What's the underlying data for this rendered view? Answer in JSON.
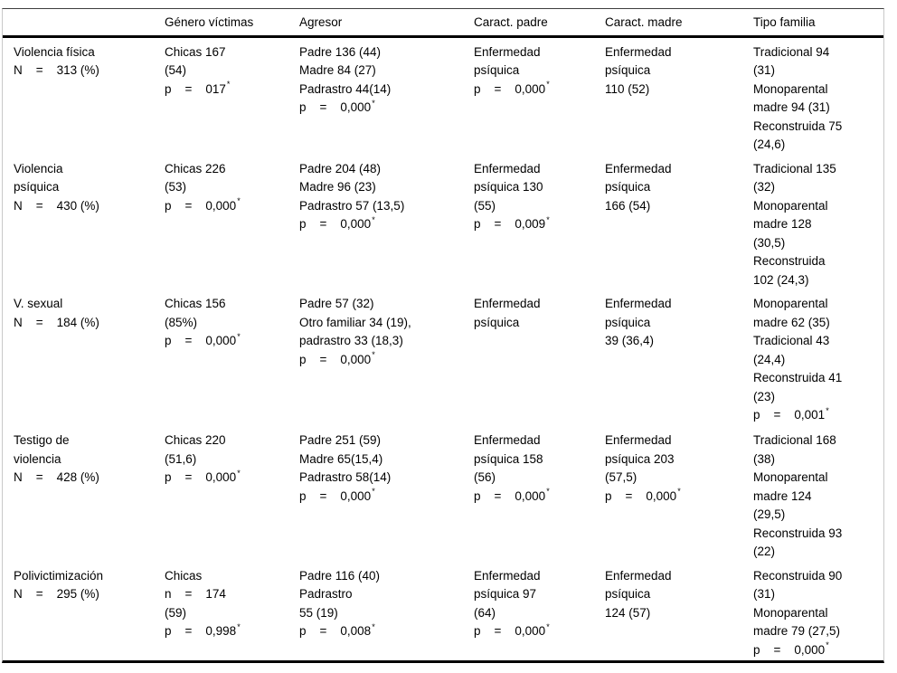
{
  "colors": {
    "background": "#ffffff",
    "text": "#000000",
    "rule_heavy": "#000000",
    "rule_light": "#c9c9c9",
    "rule_top": "#3d3d3d"
  },
  "table": {
    "columns": [
      "",
      "Género víctimas",
      "Agresor",
      "Caract. padre",
      "Caract. madre",
      "Tipo familia"
    ],
    "rows": [
      {
        "cells": [
          {
            "lines": [
              "Violencia física",
              "N    =    313 (%)"
            ]
          },
          {
            "lines": [
              "Chicas 167",
              "(54)",
              {
                "text": "p    =    017",
                "sup": "*"
              }
            ]
          },
          {
            "lines": [
              "Padre 136 (44)",
              "Madre 84 (27)",
              "Padrastro 44(14)",
              {
                "text": "p    =    0,000",
                "sup": "*"
              }
            ]
          },
          {
            "lines": [
              "Enfermedad",
              "psíquica",
              {
                "text": "p    =    0,000",
                "sup": "*"
              }
            ]
          },
          {
            "lines": [
              "Enfermedad",
              "psíquica",
              "110 (52)"
            ]
          },
          {
            "lines": [
              "Tradicional 94",
              "(31)",
              "Monoparental",
              "madre 94 (31)",
              "Reconstruida 75",
              "(24,6)"
            ]
          }
        ]
      },
      {
        "cells": [
          {
            "lines": [
              "Violencia",
              "psíquica",
              "N    =    430 (%)"
            ]
          },
          {
            "lines": [
              "Chicas 226",
              "(53)",
              {
                "text": "p    =    0,000",
                "sup": "*"
              }
            ]
          },
          {
            "lines": [
              "Padre 204 (48)",
              "Madre 96 (23)",
              "Padrastro 57 (13,5)",
              {
                "text": "p    =    0,000",
                "sup": "*"
              }
            ]
          },
          {
            "lines": [
              "Enfermedad",
              "psíquica 130",
              "(55)",
              {
                "text": "p    =    0,009",
                "sup": "*"
              }
            ]
          },
          {
            "lines": [
              "Enfermedad",
              "psíquica",
              "166 (54)"
            ]
          },
          {
            "lines": [
              "Tradicional 135",
              "(32)",
              "Monoparental",
              "madre 128",
              "(30,5)",
              "Reconstruida",
              "102 (24,3)"
            ]
          }
        ]
      },
      {
        "cells": [
          {
            "lines": [
              "V. sexual",
              "N    =    184 (%)"
            ]
          },
          {
            "lines": [
              "Chicas 156",
              "(85%)",
              {
                "text": "p    =    0,000",
                "sup": "*"
              }
            ]
          },
          {
            "lines": [
              "Padre 57 (32)",
              "Otro familiar 34 (19),",
              "padrastro 33 (18,3)",
              {
                "text": "p    =    0,000",
                "sup": "*"
              }
            ]
          },
          {
            "lines": [
              "Enfermedad",
              "psíquica"
            ]
          },
          {
            "lines": [
              "Enfermedad",
              "psíquica",
              "39 (36,4)"
            ]
          },
          {
            "lines": [
              "Monoparental",
              "madre 62 (35)",
              "Tradicional 43",
              "(24,4)",
              "Reconstruida 41",
              "(23)",
              {
                "text": "p    =    0,001",
                "sup": "*"
              }
            ]
          }
        ]
      },
      {
        "cells": [
          {
            "lines": [
              "Testigo de",
              "violencia",
              "N    =    428 (%)"
            ]
          },
          {
            "lines": [
              "Chicas 220",
              "(51,6)",
              {
                "text": "p    =    0,000",
                "sup": "*"
              }
            ]
          },
          {
            "lines": [
              "Padre 251 (59)",
              "Madre 65(15,4)",
              "Padrastro 58(14)",
              {
                "text": "p    =    0,000",
                "sup": "*"
              }
            ]
          },
          {
            "lines": [
              "Enfermedad",
              "psíquica 158",
              "(56)",
              {
                "text": "p    =    0,000",
                "sup": "*"
              }
            ]
          },
          {
            "lines": [
              "Enfermedad",
              "psíquica 203",
              "(57,5)",
              {
                "text": "p    =    0,000",
                "sup": "*"
              }
            ]
          },
          {
            "lines": [
              "Tradicional 168",
              "(38)",
              "Monoparental",
              "madre 124",
              "(29,5)",
              "Reconstruida 93",
              "(22)"
            ]
          }
        ]
      },
      {
        "cells": [
          {
            "lines": [
              "Polivictimización",
              "N    =    295 (%)"
            ]
          },
          {
            "lines": [
              "Chicas",
              "n    =    174",
              "(59)",
              {
                "text": "p    =    0,998",
                "sup": "*"
              }
            ]
          },
          {
            "lines": [
              "Padre 116 (40)",
              "Padrastro",
              "55 (19)",
              {
                "text": "p    =    0,008",
                "sup": "*"
              }
            ]
          },
          {
            "lines": [
              "Enfermedad",
              "psíquica 97",
              "(64)",
              {
                "text": "p    =    0,000",
                "sup": "*"
              }
            ]
          },
          {
            "lines": [
              "Enfermedad",
              "psíquica",
              "124 (57)"
            ]
          },
          {
            "lines": [
              "Reconstruida 90",
              "(31)",
              "Monoparental",
              "madre 79 (27,5)",
              {
                "text": "p    =    0,000",
                "sup": "*"
              }
            ]
          }
        ]
      }
    ]
  }
}
